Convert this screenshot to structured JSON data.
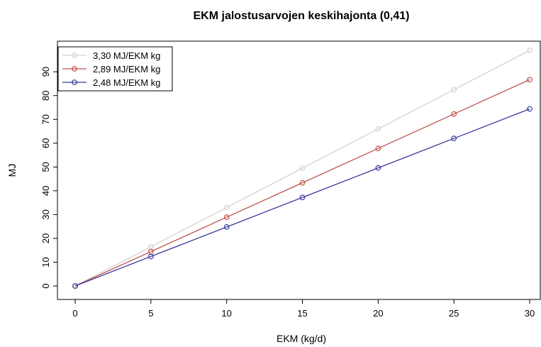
{
  "chart_data": {
    "type": "line",
    "title": "EKM jalostusarvojen keskihajonta (0,41)",
    "xlabel": "EKM (kg/d)",
    "ylabel": "MJ",
    "x": [
      0,
      5,
      10,
      15,
      20,
      25,
      30
    ],
    "xlim": [
      0,
      30
    ],
    "ylim": [
      0,
      99
    ],
    "x_ticks": [
      "0",
      "5",
      "10",
      "15",
      "20",
      "25",
      "30"
    ],
    "y_ticks": [
      "0",
      "10",
      "20",
      "30",
      "40",
      "50",
      "60",
      "70",
      "80",
      "90"
    ],
    "grid": false,
    "legend_position": "top-left",
    "series": [
      {
        "name": "3,30 MJ/EKM kg",
        "color": "#d3d3d3",
        "values": [
          0,
          16.5,
          33,
          49.5,
          66,
          82.5,
          99
        ]
      },
      {
        "name": "2,89 MJ/EKM kg",
        "color": "#c0504d",
        "values": [
          0,
          14.45,
          28.9,
          43.35,
          57.8,
          72.25,
          86.7
        ]
      },
      {
        "name": "2,48 MJ/EKM kg",
        "color": "#3a3a9e",
        "values": [
          0,
          12.4,
          24.8,
          37.2,
          49.6,
          62.0,
          74.4
        ]
      }
    ]
  }
}
